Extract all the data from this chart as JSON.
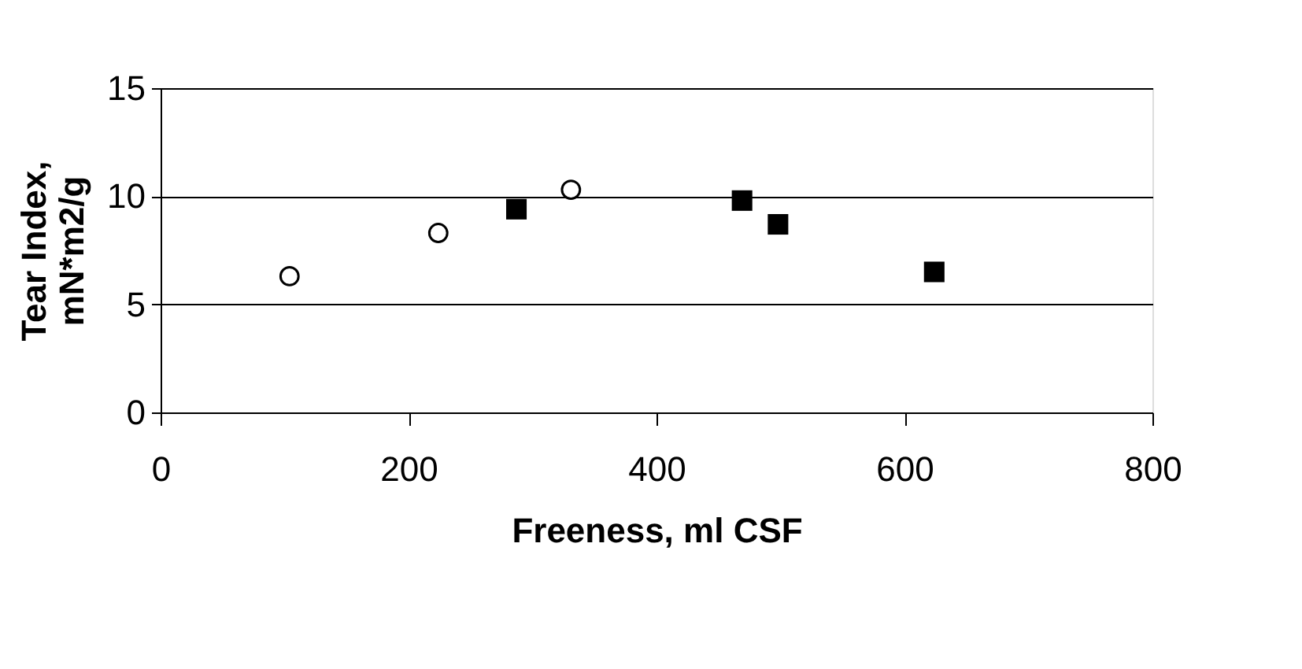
{
  "chart_data": {
    "type": "scatter",
    "xlabel": "Freeness, ml CSF",
    "ylabel": "Tear Index,\nmN*m2/g",
    "series": [
      {
        "color": "#000000",
        "marker": "circle",
        "x": [
          104,
          224,
          331
        ],
        "values": [
          6.3,
          8.3,
          10.3
        ]
      },
      {
        "color": "#000000",
        "marker": "square",
        "x": [
          287,
          469,
          498,
          624
        ],
        "values": [
          9.4,
          9.8,
          8.7,
          6.5
        ]
      }
    ],
    "xlim": [
      0,
      800
    ],
    "xticks": [
      0,
      200,
      400,
      600,
      800
    ],
    "ylim": [
      0,
      15
    ],
    "yticks": [
      0,
      5,
      10,
      15
    ],
    "grid": "y"
  }
}
